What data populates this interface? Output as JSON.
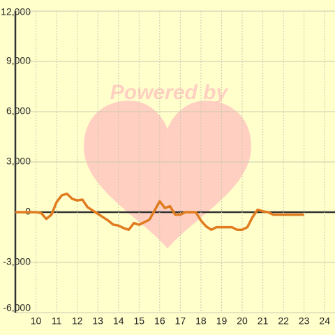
{
  "chart_data": {
    "type": "line",
    "watermark": "Powered by",
    "x": [
      9.0,
      10.0,
      10.25,
      10.5,
      10.75,
      11.0,
      11.25,
      11.5,
      11.75,
      12.0,
      12.25,
      12.5,
      12.75,
      13.0,
      13.25,
      13.5,
      13.75,
      14.0,
      14.25,
      14.5,
      14.75,
      15.0,
      15.25,
      15.5,
      15.75,
      16.0,
      16.25,
      16.5,
      16.75,
      17.0,
      17.25,
      17.5,
      17.75,
      18.0,
      18.25,
      18.5,
      18.75,
      19.0,
      19.25,
      19.5,
      19.75,
      20.0,
      20.25,
      20.5,
      20.75,
      21.0,
      21.25,
      21.5,
      21.75,
      22.0,
      22.5,
      23.0
    ],
    "series": [
      {
        "color": "#e07b20",
        "values": [
          0,
          0,
          -50,
          -400,
          -150,
          600,
          1000,
          1100,
          800,
          700,
          750,
          300,
          100,
          -100,
          -300,
          -500,
          -750,
          -800,
          -950,
          -1050,
          -650,
          -750,
          -600,
          -450,
          100,
          650,
          250,
          350,
          -150,
          -150,
          0,
          0,
          0,
          -500,
          -850,
          -1050,
          -900,
          -900,
          -900,
          -900,
          -1050,
          -1050,
          -900,
          -300,
          150,
          50,
          0,
          -150,
          -150,
          -150,
          -150,
          -150
        ]
      }
    ],
    "xlim": [
      9,
      24.5
    ],
    "xticks": [
      10,
      11,
      12,
      13,
      14,
      15,
      16,
      17,
      18,
      19,
      20,
      21,
      22,
      23,
      24
    ],
    "ylim": [
      -6000,
      12000
    ],
    "yticks": [
      {
        "value": -6000,
        "label": "-6,000"
      },
      {
        "value": -3000,
        "label": "-3,000"
      },
      0,
      {
        "value": 3000,
        "label": "3,000"
      },
      {
        "value": 6000,
        "label": "6,000"
      },
      {
        "value": 9000,
        "label": "9,000"
      },
      {
        "value": 12000,
        "label": "12,000"
      }
    ],
    "grid": true
  }
}
